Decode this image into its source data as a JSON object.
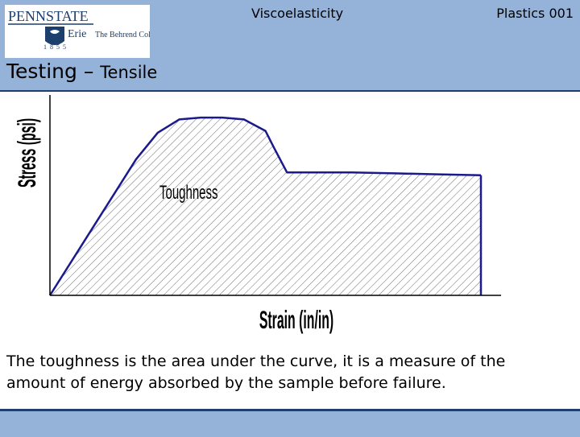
{
  "header": {
    "institution_line1": "PENNSTATE",
    "institution_line2": "Erie",
    "college_name": "The Behrend College",
    "year": "1855",
    "topic": "Viscoelasticity",
    "course": "Plastics 001"
  },
  "slide": {
    "title_main": "Testing – ",
    "title_sub": "Tensile",
    "caption": "The toughness is the area under the curve, it is a measure of the amount of energy absorbed by the sample before failure."
  },
  "chart_data": {
    "type": "area",
    "xlabel": "Strain (in/in)",
    "ylabel": "Stress (psi)",
    "annotation": "Toughness",
    "x": [
      0,
      20,
      25,
      30,
      35,
      40,
      45,
      50,
      52,
      55,
      60,
      70,
      80,
      90,
      100
    ],
    "y": [
      0,
      72,
      86,
      93,
      94,
      94,
      93,
      87,
      78,
      65,
      65,
      65,
      64.5,
      64,
      63.5
    ],
    "xlim": [
      0,
      100
    ],
    "ylim": [
      0,
      100
    ],
    "grid": false,
    "fill_pattern": "diagonal-hatch",
    "colors": {
      "curve": "#1a1a8c",
      "hatch": "#444444",
      "axis": "#000000"
    }
  },
  "theme": {
    "band": "#95b2d8",
    "accent": "#1c3f6e"
  }
}
